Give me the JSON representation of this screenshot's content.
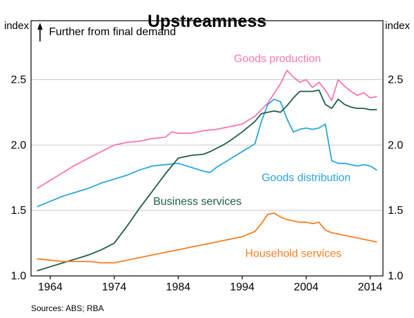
{
  "chart": {
    "title": "Upstreamness",
    "unit": "index",
    "annotation": "Further from final demand",
    "sources": "Sources: ABS; RBA"
  },
  "chart_data": {
    "type": "line",
    "title": "Upstreamness",
    "ylabel_left": "index",
    "ylabel_right": "index",
    "xlim": [
      1961,
      2016
    ],
    "ylim": [
      1.0,
      2.95
    ],
    "x_ticks": [
      1964,
      1974,
      1984,
      1994,
      2004,
      2014
    ],
    "y_ticks": [
      1.0,
      1.5,
      2.0,
      2.5
    ],
    "grid": "horizontal",
    "legend_position": "inline-labels",
    "annotation": {
      "text": "Further from final demand",
      "arrow": "up",
      "meaning": "higher index = further from final demand"
    },
    "series": [
      {
        "name": "Goods production",
        "color": "#fb74b0",
        "label_at": [
          1999.5,
          2.66
        ],
        "points": [
          [
            1962,
            1.67
          ],
          [
            1964,
            1.73
          ],
          [
            1966,
            1.79
          ],
          [
            1968,
            1.85
          ],
          [
            1970,
            1.9
          ],
          [
            1972,
            1.95
          ],
          [
            1974,
            2.0
          ],
          [
            1976,
            2.02
          ],
          [
            1978,
            2.03
          ],
          [
            1980,
            2.05
          ],
          [
            1982,
            2.06
          ],
          [
            1983,
            2.1
          ],
          [
            1984,
            2.09
          ],
          [
            1986,
            2.09
          ],
          [
            1988,
            2.11
          ],
          [
            1990,
            2.12
          ],
          [
            1992,
            2.14
          ],
          [
            1994,
            2.16
          ],
          [
            1996,
            2.22
          ],
          [
            1998,
            2.32
          ],
          [
            2000,
            2.47
          ],
          [
            2001,
            2.57
          ],
          [
            2002,
            2.52
          ],
          [
            2003,
            2.48
          ],
          [
            2004,
            2.5
          ],
          [
            2005,
            2.44
          ],
          [
            2006,
            2.48
          ],
          [
            2007,
            2.42
          ],
          [
            2008,
            2.34
          ],
          [
            2009,
            2.5
          ],
          [
            2010,
            2.45
          ],
          [
            2011,
            2.41
          ],
          [
            2012,
            2.38
          ],
          [
            2013,
            2.4
          ],
          [
            2014,
            2.36
          ],
          [
            2015,
            2.37
          ]
        ]
      },
      {
        "name": "Goods distribution",
        "color": "#29a3e0",
        "label_at": [
          2004,
          1.75
        ],
        "points": [
          [
            1962,
            1.53
          ],
          [
            1964,
            1.57
          ],
          [
            1966,
            1.61
          ],
          [
            1968,
            1.64
          ],
          [
            1970,
            1.67
          ],
          [
            1972,
            1.71
          ],
          [
            1974,
            1.74
          ],
          [
            1976,
            1.77
          ],
          [
            1978,
            1.81
          ],
          [
            1980,
            1.84
          ],
          [
            1982,
            1.85
          ],
          [
            1984,
            1.86
          ],
          [
            1986,
            1.83
          ],
          [
            1988,
            1.8
          ],
          [
            1989,
            1.79
          ],
          [
            1990,
            1.83
          ],
          [
            1992,
            1.89
          ],
          [
            1994,
            1.95
          ],
          [
            1995,
            1.98
          ],
          [
            1996,
            2.01
          ],
          [
            1997,
            2.18
          ],
          [
            1998,
            2.31
          ],
          [
            1999,
            2.35
          ],
          [
            2000,
            2.33
          ],
          [
            2001,
            2.2
          ],
          [
            2002,
            2.1
          ],
          [
            2003,
            2.12
          ],
          [
            2004,
            2.13
          ],
          [
            2005,
            2.12
          ],
          [
            2006,
            2.13
          ],
          [
            2007,
            2.16
          ],
          [
            2008,
            1.88
          ],
          [
            2009,
            1.86
          ],
          [
            2010,
            1.86
          ],
          [
            2011,
            1.85
          ],
          [
            2012,
            1.84
          ],
          [
            2013,
            1.85
          ],
          [
            2014,
            1.84
          ],
          [
            2015,
            1.81
          ]
        ]
      },
      {
        "name": "Business services",
        "color": "#1b5c47",
        "label_at": [
          1987,
          1.57
        ],
        "points": [
          [
            1962,
            1.04
          ],
          [
            1964,
            1.07
          ],
          [
            1966,
            1.1
          ],
          [
            1968,
            1.13
          ],
          [
            1970,
            1.16
          ],
          [
            1972,
            1.2
          ],
          [
            1974,
            1.25
          ],
          [
            1976,
            1.38
          ],
          [
            1978,
            1.52
          ],
          [
            1980,
            1.65
          ],
          [
            1982,
            1.78
          ],
          [
            1984,
            1.9
          ],
          [
            1986,
            1.92
          ],
          [
            1988,
            1.93
          ],
          [
            1989,
            1.95
          ],
          [
            1991,
            2.0
          ],
          [
            1992,
            2.03
          ],
          [
            1994,
            2.1
          ],
          [
            1996,
            2.18
          ],
          [
            1997,
            2.24
          ],
          [
            1998,
            2.25
          ],
          [
            1999,
            2.26
          ],
          [
            2000,
            2.25
          ],
          [
            2001,
            2.3
          ],
          [
            2002,
            2.36
          ],
          [
            2003,
            2.41
          ],
          [
            2004,
            2.41
          ],
          [
            2005,
            2.41
          ],
          [
            2006,
            2.42
          ],
          [
            2007,
            2.31
          ],
          [
            2008,
            2.28
          ],
          [
            2009,
            2.35
          ],
          [
            2010,
            2.31
          ],
          [
            2011,
            2.29
          ],
          [
            2012,
            2.28
          ],
          [
            2013,
            2.28
          ],
          [
            2014,
            2.27
          ],
          [
            2015,
            2.27
          ]
        ]
      },
      {
        "name": "Household services",
        "color": "#f87d21",
        "label_at": [
          2002,
          1.17
        ],
        "points": [
          [
            1962,
            1.13
          ],
          [
            1964,
            1.12
          ],
          [
            1966,
            1.11
          ],
          [
            1968,
            1.11
          ],
          [
            1970,
            1.11
          ],
          [
            1972,
            1.1
          ],
          [
            1974,
            1.1
          ],
          [
            1976,
            1.12
          ],
          [
            1978,
            1.14
          ],
          [
            1980,
            1.16
          ],
          [
            1982,
            1.18
          ],
          [
            1984,
            1.2
          ],
          [
            1986,
            1.22
          ],
          [
            1988,
            1.24
          ],
          [
            1990,
            1.26
          ],
          [
            1992,
            1.28
          ],
          [
            1994,
            1.3
          ],
          [
            1995,
            1.32
          ],
          [
            1996,
            1.34
          ],
          [
            1997,
            1.4
          ],
          [
            1998,
            1.47
          ],
          [
            1999,
            1.48
          ],
          [
            2000,
            1.45
          ],
          [
            2001,
            1.43
          ],
          [
            2002,
            1.42
          ],
          [
            2003,
            1.41
          ],
          [
            2004,
            1.41
          ],
          [
            2005,
            1.4
          ],
          [
            2006,
            1.41
          ],
          [
            2007,
            1.35
          ],
          [
            2008,
            1.33
          ],
          [
            2009,
            1.32
          ],
          [
            2010,
            1.31
          ],
          [
            2011,
            1.3
          ],
          [
            2012,
            1.29
          ],
          [
            2013,
            1.28
          ],
          [
            2014,
            1.27
          ],
          [
            2015,
            1.26
          ]
        ]
      }
    ]
  }
}
